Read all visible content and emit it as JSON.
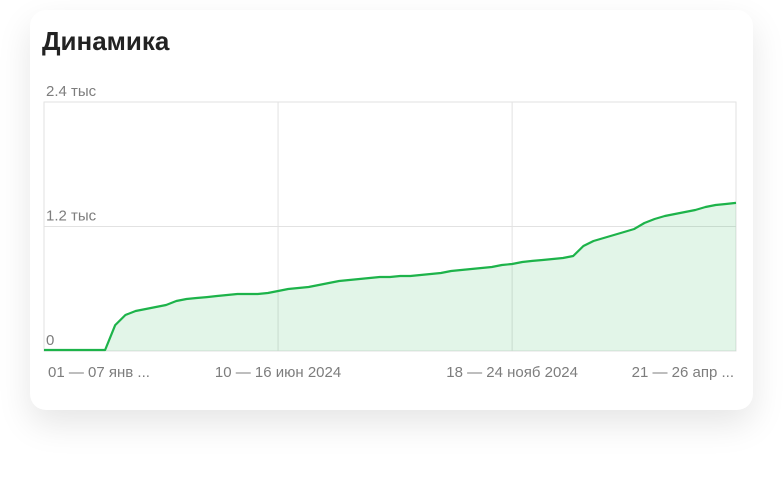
{
  "chart_data": {
    "type": "line",
    "title": "Динамика",
    "categories": [
      "01 — 07 янв ...",
      null,
      null,
      null,
      null,
      null,
      null,
      null,
      null,
      null,
      null,
      null,
      null,
      null,
      null,
      null,
      null,
      null,
      null,
      null,
      null,
      null,
      null,
      "10 — 16 июн 2024",
      null,
      null,
      null,
      null,
      null,
      null,
      null,
      null,
      null,
      null,
      null,
      null,
      null,
      null,
      null,
      null,
      null,
      null,
      null,
      null,
      null,
      null,
      "18 — 24 нояб 2024",
      null,
      null,
      null,
      null,
      null,
      null,
      null,
      null,
      null,
      null,
      null,
      null,
      null,
      null,
      null,
      null,
      null,
      null,
      null,
      null,
      null,
      "21 — 26 апр ..."
    ],
    "values": [
      10,
      10,
      10,
      10,
      10,
      10,
      10,
      250,
      347,
      386,
      405,
      424,
      443,
      482,
      501,
      511,
      520,
      530,
      540,
      549,
      549,
      549,
      559,
      578,
      598,
      607,
      617,
      636,
      655,
      675,
      684,
      694,
      704,
      713,
      713,
      723,
      723,
      733,
      742,
      752,
      771,
      781,
      790,
      800,
      810,
      829,
      839,
      858,
      868,
      877,
      887,
      896,
      916,
      1012,
      1060,
      1089,
      1118,
      1147,
      1176,
      1234,
      1272,
      1301,
      1320,
      1340,
      1359,
      1388,
      1407,
      1417,
      1427
    ],
    "color": "#1db34a",
    "ylim": [
      0,
      2400
    ],
    "yticks": [
      0,
      {
        "value": 1200,
        "label": "1.2 тыс"
      },
      {
        "value": 2400,
        "label": "2.4 тыс"
      }
    ],
    "grid": true
  }
}
